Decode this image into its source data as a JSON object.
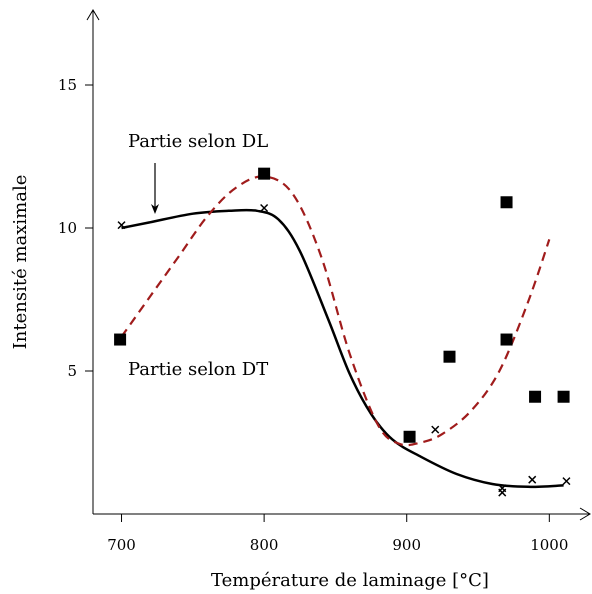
{
  "chart_data": {
    "type": "scatter",
    "title": "",
    "xlabel": "Température de laminage [°C]",
    "ylabel": "Intensité maximale",
    "xlim": [
      680,
      1015
    ],
    "ylim": [
      0,
      18
    ],
    "xticks": [
      700,
      800,
      900,
      1000
    ],
    "yticks": [
      5,
      10,
      15
    ],
    "grid": false,
    "annotations": [
      {
        "text": "Partie selon DL",
        "arrow": true
      },
      {
        "text": "Partie selon DT",
        "arrow": false
      }
    ],
    "series": [
      {
        "marker": "x",
        "points": [
          {
            "x": 700,
            "y": 10.1
          },
          {
            "x": 800,
            "y": 10.7
          },
          {
            "x": 920,
            "y": 2.95
          },
          {
            "x": 967,
            "y": 0.9
          },
          {
            "x": 967,
            "y": 0.75
          },
          {
            "x": 988,
            "y": 1.2
          },
          {
            "x": 1012,
            "y": 1.15
          }
        ]
      },
      {
        "marker": "square",
        "points": [
          {
            "x": 699,
            "y": 6.1
          },
          {
            "x": 800,
            "y": 11.9
          },
          {
            "x": 902,
            "y": 2.7
          },
          {
            "x": 930,
            "y": 5.5
          },
          {
            "x": 970,
            "y": 10.9
          },
          {
            "x": 970,
            "y": 6.1
          },
          {
            "x": 990,
            "y": 4.1
          },
          {
            "x": 1010,
            "y": 4.1
          }
        ]
      }
    ],
    "curves": [
      {
        "style": "solid",
        "color": "#000000",
        "points": [
          {
            "x": 700,
            "y": 10.0
          },
          {
            "x": 720,
            "y": 10.2
          },
          {
            "x": 750,
            "y": 10.5
          },
          {
            "x": 775,
            "y": 10.6
          },
          {
            "x": 795,
            "y": 10.6
          },
          {
            "x": 810,
            "y": 10.3
          },
          {
            "x": 825,
            "y": 9.2
          },
          {
            "x": 845,
            "y": 6.8
          },
          {
            "x": 860,
            "y": 4.9
          },
          {
            "x": 875,
            "y": 3.5
          },
          {
            "x": 890,
            "y": 2.6
          },
          {
            "x": 910,
            "y": 2.0
          },
          {
            "x": 935,
            "y": 1.4
          },
          {
            "x": 960,
            "y": 1.05
          },
          {
            "x": 985,
            "y": 0.95
          },
          {
            "x": 1010,
            "y": 1.0
          }
        ]
      },
      {
        "style": "dashed",
        "color": "#a01c1c",
        "points": [
          {
            "x": 700,
            "y": 6.2
          },
          {
            "x": 720,
            "y": 7.6
          },
          {
            "x": 740,
            "y": 9.0
          },
          {
            "x": 760,
            "y": 10.4
          },
          {
            "x": 780,
            "y": 11.4
          },
          {
            "x": 800,
            "y": 11.8
          },
          {
            "x": 820,
            "y": 11.2
          },
          {
            "x": 840,
            "y": 9.0
          },
          {
            "x": 860,
            "y": 5.6
          },
          {
            "x": 880,
            "y": 3.1
          },
          {
            "x": 895,
            "y": 2.45
          },
          {
            "x": 910,
            "y": 2.5
          },
          {
            "x": 925,
            "y": 2.8
          },
          {
            "x": 945,
            "y": 3.6
          },
          {
            "x": 965,
            "y": 5.0
          },
          {
            "x": 985,
            "y": 7.4
          },
          {
            "x": 1000,
            "y": 9.6
          }
        ]
      }
    ]
  }
}
